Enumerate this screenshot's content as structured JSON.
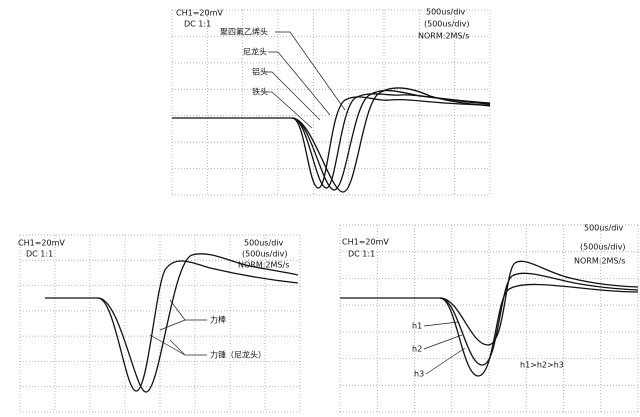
{
  "panels": [
    {
      "channel": "CH1=20mV",
      "coupling": "DC  1:1",
      "timebase": "500us/div",
      "timebase2": "(500us/div)",
      "mode": "NORM:2MS/s",
      "labels": [
        "聚四氟乙烯头",
        "尼龙头",
        "铝头",
        "铁头"
      ]
    },
    {
      "channel": "CH1=20mV",
      "coupling": "DC  1:1",
      "timebase": "500us/div",
      "timebase2": "(500us/div)",
      "mode": "NORM:2MS/s",
      "labels": [
        "力棒",
        "力锤（尼龙头）"
      ]
    },
    {
      "channel": "CH1=20mV",
      "coupling": "DC  1:1",
      "timebase": "500us/div",
      "timebase2": "(500us/div)",
      "mode": "NORM:2MS/s",
      "labels": [
        "h1",
        "h2",
        "h3",
        "h1>h2>h3"
      ]
    }
  ]
}
